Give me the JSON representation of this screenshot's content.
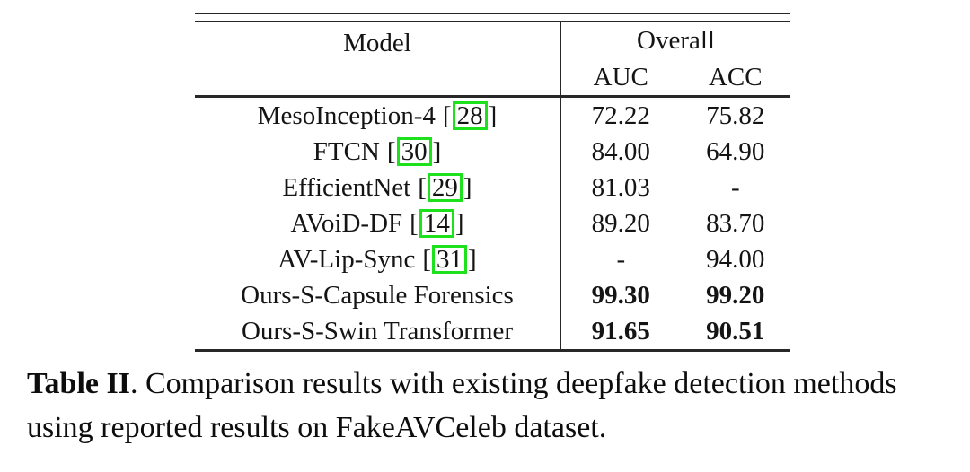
{
  "table": {
    "header": {
      "model": "Model",
      "overall": "Overall",
      "auc": "AUC",
      "acc": "ACC"
    },
    "rows": [
      {
        "model": "MesoInception-4",
        "cite": "28",
        "auc": "72.22",
        "acc": "75.82"
      },
      {
        "model": "FTCN",
        "cite": "30",
        "auc": "84.00",
        "acc": "64.90"
      },
      {
        "model": "EfficientNet",
        "cite": "29",
        "auc": "81.03",
        "acc": "-"
      },
      {
        "model": "AVoiD-DF",
        "cite": "14",
        "auc": "89.20",
        "acc": "83.70"
      },
      {
        "model": "AV-Lip-Sync",
        "cite": "31",
        "auc": "-",
        "acc": "94.00"
      },
      {
        "model": "Ours-S-Capsule Forensics",
        "cite": "",
        "auc": "99.30",
        "acc": "99.20"
      },
      {
        "model": "Ours-S-Swin Transformer",
        "cite": "",
        "auc": "91.65",
        "acc": "90.51"
      }
    ]
  },
  "caption": {
    "label": "Table II",
    "text": ". Comparison results with existing deepfake detection methods using reported results on FakeAVCeleb dataset."
  },
  "colors": {
    "citation_box": "#1ee11e",
    "text": "#141414",
    "rule": "#282828"
  }
}
